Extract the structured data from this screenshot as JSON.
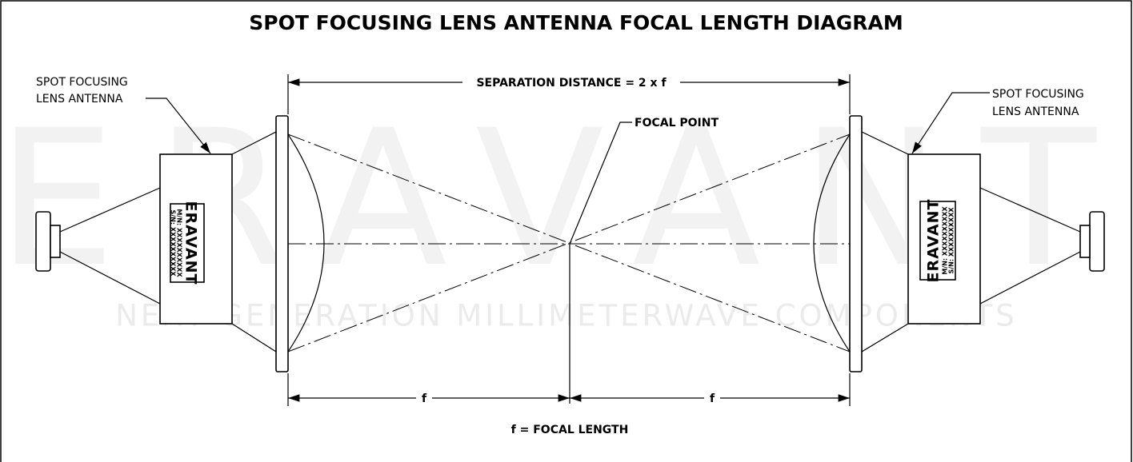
{
  "title": "SPOT FOCUSING LENS ANTENNA FOCAL LENGTH DIAGRAM",
  "watermark": {
    "brand": "ERAVANT",
    "tagline": "NEXT GENERATION MILLIMETERWAVE COMPONENTS"
  },
  "labels": {
    "left_antenna": [
      "SPOT FOCUSING",
      "LENS ANTENNA"
    ],
    "right_antenna": [
      "SPOT FOCUSING",
      "LENS ANTENNA"
    ],
    "separation": "SEPARATION DISTANCE = 2 x f",
    "focal_point": "FOCAL POINT",
    "f_left": "f",
    "f_right": "f",
    "legend": "f = FOCAL LENGTH"
  },
  "antenna_tags": {
    "left": {
      "brand": "ERAVANT",
      "model": "M/N: XXXXXXXXXX",
      "serial": "S/N: XXXXXXXXXX"
    },
    "right": {
      "brand": "ERAVANT",
      "model": "M/N: XXXXXXXXXX",
      "serial": "S/N: XXXXXXXXXX"
    }
  }
}
